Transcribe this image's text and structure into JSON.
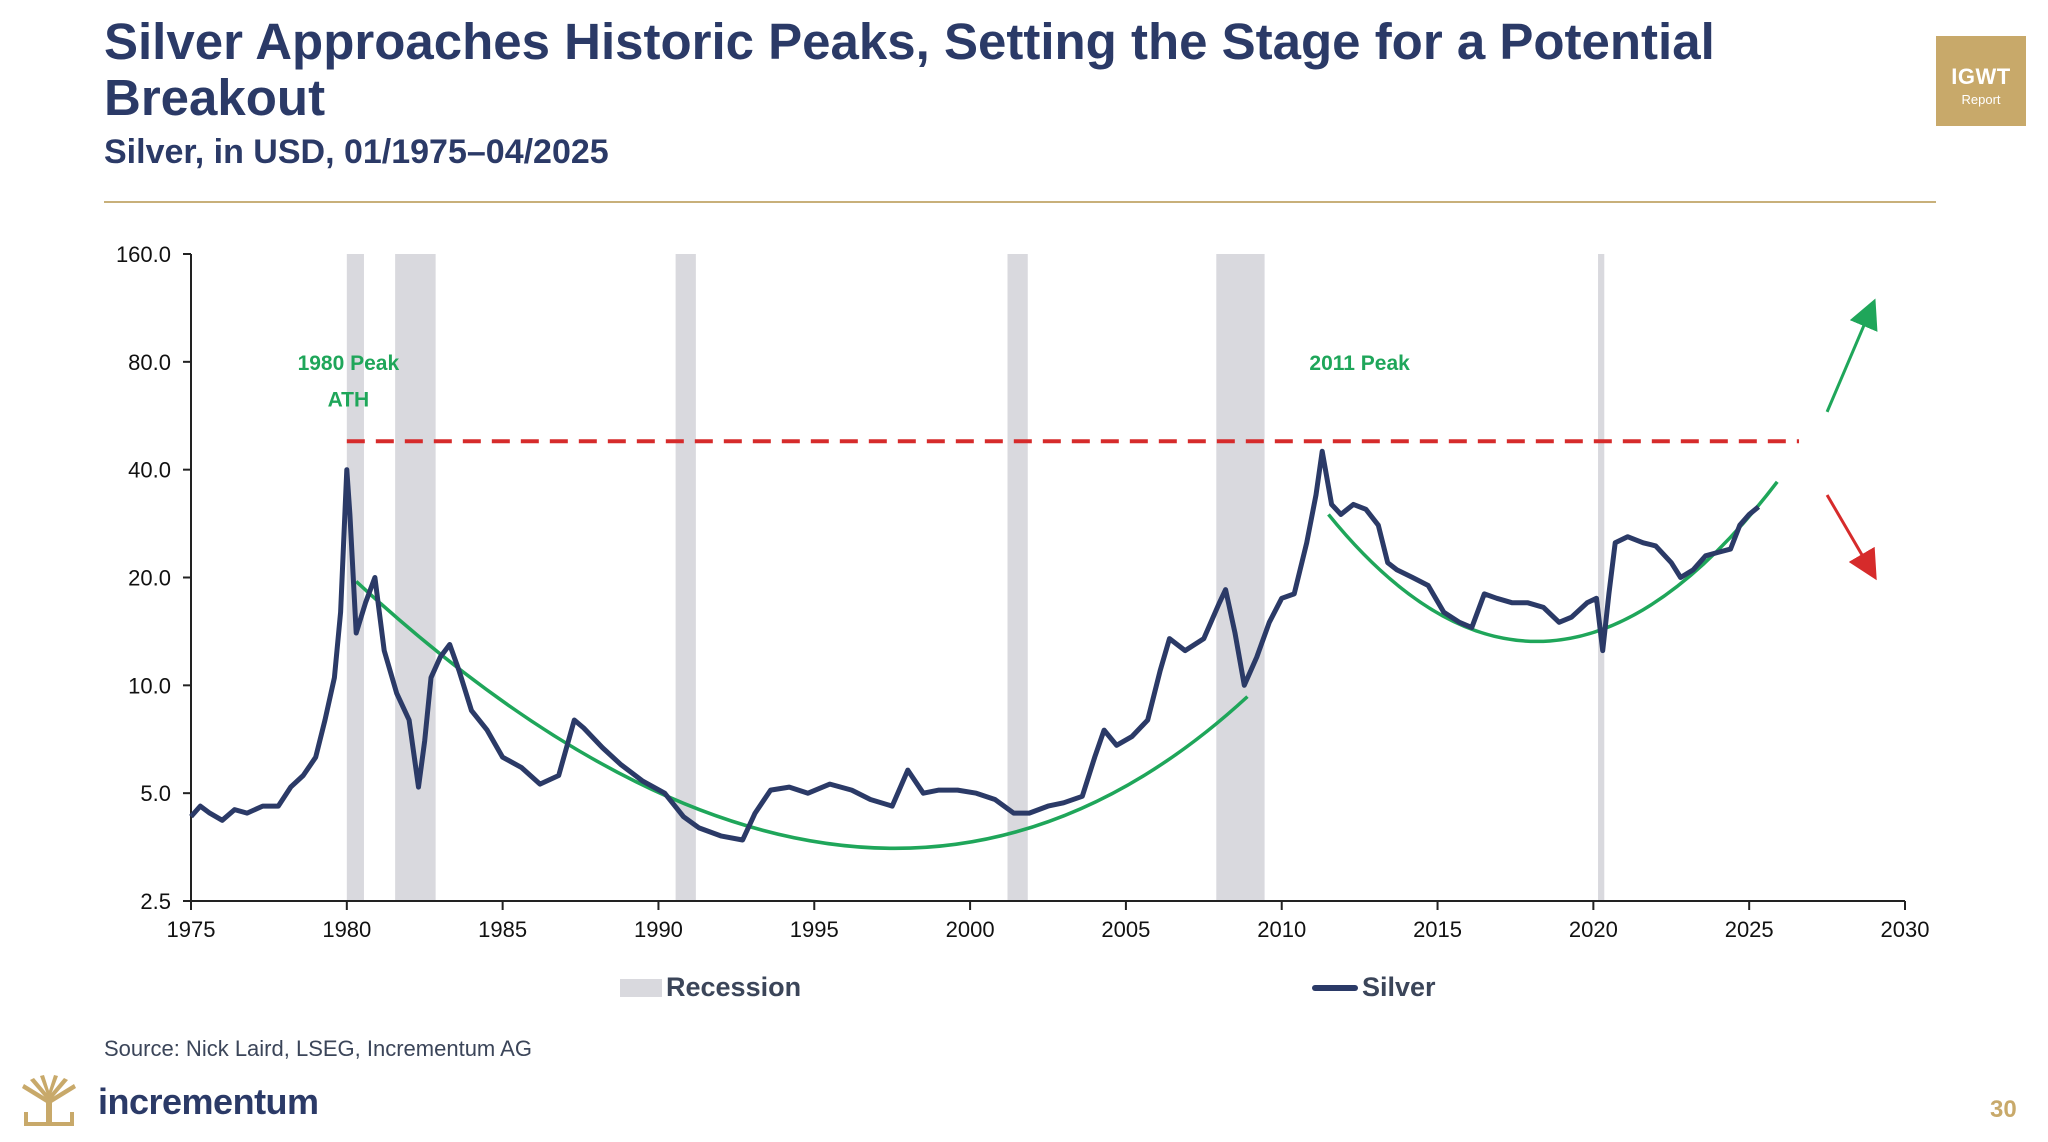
{
  "header": {
    "title": "Silver Approaches Historic Peaks, Setting the Stage for a Potential Breakout",
    "subtitle": "Silver, in USD, 01/1975–04/2025",
    "badge_line1": "IGWT",
    "badge_line2": "Report"
  },
  "colors": {
    "navy": "#2b3a67",
    "green": "#1fa65a",
    "red": "#d62b2b",
    "recession": "#d9d9de",
    "gold": "#c8a96a"
  },
  "chart_data": {
    "type": "line",
    "title": "Silver, in USD, 01/1975–04/2025",
    "y_scale": "log2",
    "ylim": [
      2.5,
      160
    ],
    "xlim": [
      1975,
      2030
    ],
    "y_ticks": [
      160,
      80,
      40,
      20,
      10,
      5,
      2.5
    ],
    "y_tick_labels": [
      "160.0",
      "80.0",
      "40.0",
      "20.0",
      "10.0",
      "5.0",
      "2.5"
    ],
    "x_ticks": [
      1975,
      1980,
      1985,
      1990,
      1995,
      2000,
      2005,
      2010,
      2015,
      2020,
      2025,
      2030
    ],
    "x_tick_labels": [
      "1975",
      "1980",
      "1985",
      "1990",
      "1995",
      "2000",
      "2005",
      "2010",
      "2015",
      "2020",
      "2025",
      "2030"
    ],
    "recessions": [
      [
        1980.0,
        1980.55
      ],
      [
        1981.55,
        1982.85
      ],
      [
        1990.55,
        1991.2
      ],
      [
        2001.2,
        2001.85
      ],
      [
        2007.9,
        2009.45
      ],
      [
        2020.15,
        2020.35
      ]
    ],
    "series": [
      {
        "name": "Silver",
        "x": [
          1975.0,
          1975.3,
          1975.6,
          1976.0,
          1976.4,
          1976.8,
          1977.3,
          1977.8,
          1978.2,
          1978.6,
          1979.0,
          1979.3,
          1979.6,
          1979.8,
          1980.0,
          1980.1,
          1980.3,
          1980.6,
          1980.9,
          1981.2,
          1981.6,
          1982.0,
          1982.3,
          1982.5,
          1982.7,
          1983.0,
          1983.3,
          1983.6,
          1984.0,
          1984.5,
          1985.0,
          1985.6,
          1986.2,
          1986.8,
          1987.3,
          1987.6,
          1988.2,
          1988.8,
          1989.5,
          1990.2,
          1990.8,
          1991.3,
          1992.0,
          1992.7,
          1993.1,
          1993.6,
          1994.2,
          1994.8,
          1995.5,
          1996.2,
          1996.8,
          1997.5,
          1998.0,
          1998.5,
          1999.0,
          1999.6,
          2000.2,
          2000.8,
          2001.4,
          2001.9,
          2002.5,
          2003.0,
          2003.6,
          2004.0,
          2004.3,
          2004.7,
          2005.2,
          2005.7,
          2006.1,
          2006.4,
          2006.9,
          2007.5,
          2008.0,
          2008.2,
          2008.5,
          2008.8,
          2009.2,
          2009.6,
          2010.0,
          2010.4,
          2010.8,
          2011.1,
          2011.3,
          2011.6,
          2011.9,
          2012.3,
          2012.7,
          2013.1,
          2013.4,
          2013.7,
          2014.2,
          2014.7,
          2015.2,
          2015.7,
          2016.1,
          2016.5,
          2016.9,
          2017.4,
          2017.9,
          2018.4,
          2018.9,
          2019.3,
          2019.8,
          2020.1,
          2020.3,
          2020.5,
          2020.7,
          2021.1,
          2021.6,
          2022.0,
          2022.5,
          2022.8,
          2023.2,
          2023.6,
          2024.0,
          2024.4,
          2024.7,
          2025.0,
          2025.3
        ],
        "y": [
          4.3,
          4.6,
          4.4,
          4.2,
          4.5,
          4.4,
          4.6,
          4.6,
          5.2,
          5.6,
          6.3,
          8.0,
          10.5,
          16.0,
          40.0,
          30.0,
          14.0,
          17.0,
          20.0,
          12.5,
          9.5,
          8.0,
          5.2,
          7.0,
          10.5,
          12.0,
          13.0,
          11.0,
          8.5,
          7.5,
          6.3,
          5.9,
          5.3,
          5.6,
          8.0,
          7.6,
          6.7,
          6.0,
          5.4,
          5.0,
          4.3,
          4.0,
          3.8,
          3.7,
          4.4,
          5.1,
          5.2,
          5.0,
          5.3,
          5.1,
          4.8,
          4.6,
          5.8,
          5.0,
          5.1,
          5.1,
          5.0,
          4.8,
          4.4,
          4.4,
          4.6,
          4.7,
          4.9,
          6.3,
          7.5,
          6.8,
          7.2,
          8.0,
          11.0,
          13.5,
          12.5,
          13.5,
          17.0,
          18.5,
          14.0,
          10.0,
          12.0,
          15.0,
          17.5,
          18.0,
          25.0,
          34.0,
          45.0,
          32.0,
          30.0,
          32.0,
          31.0,
          28.0,
          22.0,
          21.0,
          20.0,
          19.0,
          16.0,
          15.0,
          14.5,
          18.0,
          17.5,
          17.0,
          17.0,
          16.5,
          15.0,
          15.5,
          17.0,
          17.5,
          12.5,
          18.0,
          25.0,
          26.0,
          25.0,
          24.5,
          22.0,
          20.0,
          21.0,
          23.0,
          23.5,
          24.0,
          28.0,
          30.0,
          31.5
        ]
      }
    ],
    "annotations": [
      {
        "text": "1980 Peak",
        "text2": "ATH"
      },
      {
        "text": "2011 Peak"
      }
    ],
    "resistance_level": 48,
    "legend": [
      "Recession",
      "Silver"
    ]
  },
  "footer": {
    "legend_recession": "Recession",
    "legend_silver": "Silver",
    "source": "Source: Nick Laird, LSEG, Incrementum AG",
    "brand": "incrementum",
    "page_number": "30"
  }
}
